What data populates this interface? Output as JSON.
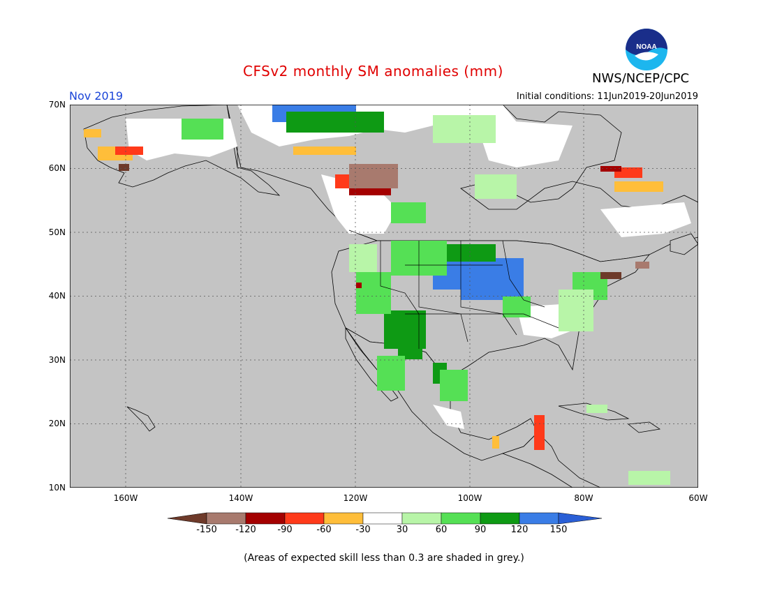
{
  "title": "CFSv2 monthly SM anomalies (mm)",
  "agency": "NWS/NCEP/CPC",
  "logo_text": "NOAA",
  "month": "Nov 2019",
  "initial_conditions": "Initial conditions: 11Jun2019-20Jun2019",
  "lat_labels": [
    "70N",
    "60N",
    "50N",
    "40N",
    "30N",
    "20N",
    "10N"
  ],
  "lon_labels": [
    "160W",
    "140W",
    "120W",
    "100W",
    "80W",
    "60W"
  ],
  "legend": {
    "labels": [
      "-150",
      "-120",
      "-90",
      "-60",
      "-30",
      "30",
      "60",
      "90",
      "120",
      "150"
    ],
    "colors": [
      "#6e3a2a",
      "#a87a6e",
      "#a40000",
      "#ff3a1a",
      "#ffbe3a",
      "#ffffff",
      "#b8f5a8",
      "#55e055",
      "#0e9a14",
      "#3a7de6",
      "#2a5fd6"
    ]
  },
  "note": "(Areas of expected skill less than 0.3 are shaded in grey.)",
  "colors": {
    "title": "#e00000",
    "month": "#1a44d8",
    "grey_mask": "#c4c4c4",
    "ocean": "#c4c4c4"
  }
}
